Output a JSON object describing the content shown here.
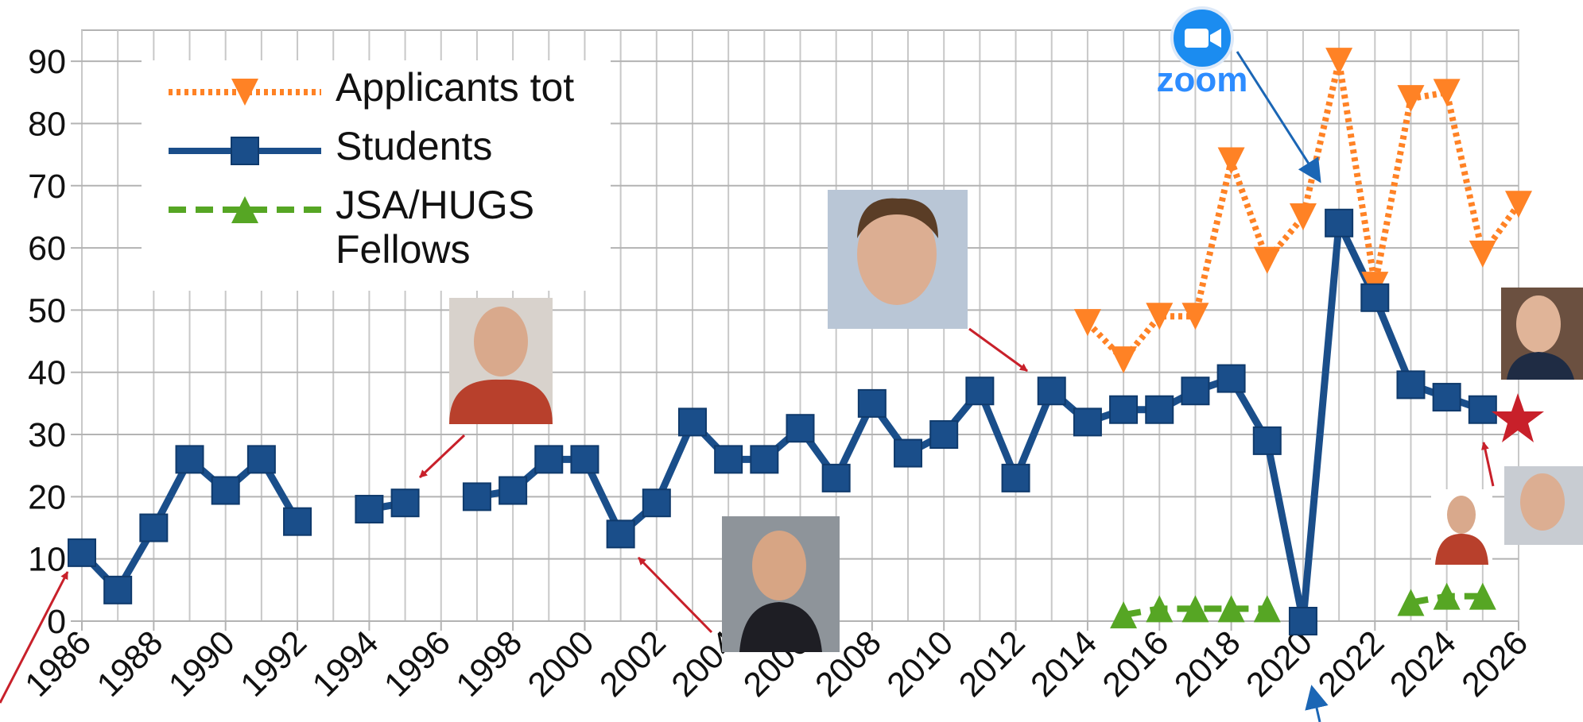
{
  "chart_data": {
    "type": "line",
    "x": [
      1986,
      1987,
      1988,
      1989,
      1990,
      1991,
      1992,
      1993,
      1994,
      1995,
      1996,
      1997,
      1998,
      1999,
      2000,
      2001,
      2002,
      2003,
      2004,
      2005,
      2006,
      2007,
      2008,
      2009,
      2010,
      2011,
      2012,
      2013,
      2014,
      2015,
      2016,
      2017,
      2018,
      2019,
      2020,
      2021,
      2022,
      2023,
      2024,
      2025,
      2026
    ],
    "series": [
      {
        "name": "Applicants tot",
        "color": "#ff8225",
        "marker": "triangle-down",
        "dash": "dotted",
        "values": [
          null,
          null,
          null,
          null,
          null,
          null,
          null,
          null,
          null,
          null,
          null,
          null,
          null,
          null,
          null,
          null,
          null,
          null,
          null,
          null,
          null,
          null,
          null,
          null,
          null,
          null,
          null,
          null,
          48,
          42,
          49,
          49,
          74,
          58,
          65,
          90,
          54,
          84,
          85,
          59,
          67
        ]
      },
      {
        "name": "Students",
        "color": "#1a4e8a",
        "marker": "square",
        "dash": "solid",
        "values": [
          11,
          5,
          15,
          26,
          21,
          26,
          16,
          null,
          18,
          19,
          null,
          20,
          21,
          26,
          26,
          14,
          19,
          32,
          26,
          26,
          31,
          23,
          35,
          27,
          30,
          37,
          23,
          37,
          32,
          34,
          34,
          37,
          39,
          29,
          0,
          64,
          52,
          38,
          36,
          34,
          null
        ]
      },
      {
        "name": "JSA/HUGS Fellows",
        "color": "#56a624",
        "marker": "triangle-up",
        "dash": "dashed",
        "values": [
          null,
          null,
          null,
          null,
          null,
          null,
          null,
          null,
          null,
          null,
          null,
          null,
          null,
          null,
          null,
          null,
          null,
          null,
          null,
          null,
          null,
          null,
          null,
          null,
          null,
          null,
          null,
          null,
          null,
          1,
          2,
          2,
          2,
          2,
          null,
          null,
          null,
          3,
          4,
          4,
          null
        ]
      }
    ],
    "xlim": [
      1986,
      2026
    ],
    "xticks": [
      1986,
      1988,
      1990,
      1992,
      1994,
      1996,
      1998,
      2000,
      2002,
      2004,
      2006,
      2008,
      2010,
      2012,
      2014,
      2016,
      2018,
      2020,
      2022,
      2024,
      2026
    ],
    "ylim": [
      0,
      95
    ],
    "yticks": [
      0,
      10,
      20,
      30,
      40,
      50,
      60,
      70,
      80,
      90
    ],
    "grid": true,
    "legend": "upper left",
    "annotations": [
      "zoom"
    ]
  }
}
